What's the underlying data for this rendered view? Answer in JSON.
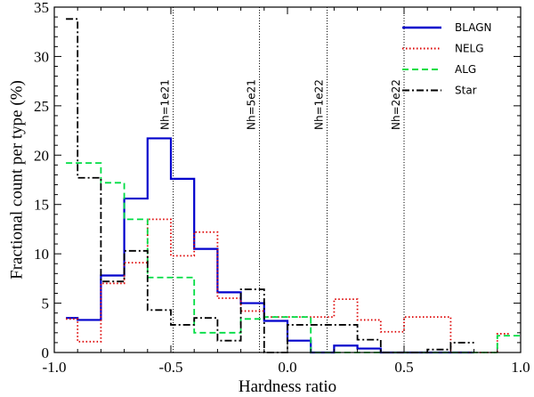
{
  "chart_data": {
    "type": "histogram-step",
    "title": "",
    "xlabel": "Hardness ratio",
    "ylabel": "Fractional count per type (%)",
    "xlim": [
      -1.0,
      1.0
    ],
    "ylim": [
      0,
      35
    ],
    "x_ticks": [
      -1.0,
      -0.5,
      0.0,
      0.5,
      1.0
    ],
    "x_tick_labels": [
      "-1.0",
      "-0.5",
      "0.0",
      "0.5",
      "1.0"
    ],
    "y_ticks": [
      0,
      5,
      10,
      15,
      20,
      25,
      30,
      35
    ],
    "y_tick_labels": [
      "0",
      "5",
      "10",
      "15",
      "20",
      "25",
      "30",
      "35"
    ],
    "legend_position": "top-right",
    "series": [
      {
        "name": "BLAGN",
        "color": "#0000cc",
        "dash": "solid",
        "edges": [
          -0.95,
          -0.9,
          -0.8,
          -0.7,
          -0.6,
          -0.5,
          -0.4,
          -0.3,
          -0.2,
          -0.1,
          0.0,
          0.1,
          0.2,
          0.3,
          0.4,
          0.5,
          0.6,
          0.7,
          0.8
        ],
        "values": [
          3.5,
          3.3,
          7.8,
          15.6,
          21.7,
          17.6,
          10.5,
          6.1,
          5.0,
          3.2,
          1.2,
          0.0,
          0.7,
          0.4,
          0.0,
          0.0,
          0.0,
          0.0
        ]
      },
      {
        "name": "NELG",
        "color": "#dd0000",
        "dash": "dotted",
        "edges": [
          -0.95,
          -0.9,
          -0.8,
          -0.7,
          -0.6,
          -0.5,
          -0.4,
          -0.3,
          -0.2,
          -0.1,
          0.0,
          0.1,
          0.2,
          0.3,
          0.4,
          0.5,
          0.6,
          0.7,
          0.8,
          0.9,
          0.95
        ],
        "values": [
          3.4,
          1.1,
          7.0,
          9.1,
          13.5,
          9.8,
          12.2,
          5.5,
          4.2,
          3.6,
          3.6,
          3.6,
          5.4,
          3.3,
          2.1,
          3.6,
          3.6,
          0.0,
          0.0,
          1.9
        ]
      },
      {
        "name": "ALG",
        "color": "#00dd44",
        "dash": "dashed",
        "edges": [
          -0.95,
          -0.8,
          -0.7,
          -0.6,
          -0.5,
          -0.4,
          -0.3,
          -0.2,
          -0.1,
          0.0,
          0.1,
          0.2,
          0.3,
          0.4,
          0.5,
          0.6,
          0.7,
          0.8,
          0.9,
          1.0
        ],
        "values": [
          19.2,
          17.2,
          13.5,
          7.6,
          7.6,
          2.0,
          2.0,
          3.4,
          3.6,
          3.6,
          0.0,
          0.0,
          0.0,
          0.0,
          0.0,
          0.0,
          0.0,
          0.0,
          1.7
        ]
      },
      {
        "name": "Star",
        "color": "#000000",
        "dash": "dashdot",
        "edges": [
          -0.95,
          -0.9,
          -0.8,
          -0.7,
          -0.6,
          -0.5,
          -0.4,
          -0.3,
          -0.2,
          -0.1,
          0.0,
          0.1,
          0.2,
          0.3,
          0.4,
          0.5,
          0.6,
          0.7,
          0.8
        ],
        "values": [
          33.8,
          17.7,
          7.2,
          10.3,
          4.3,
          2.8,
          3.5,
          1.2,
          6.4,
          0.0,
          2.8,
          2.8,
          2.8,
          1.3,
          0.0,
          0.0,
          0.3,
          1.0
        ]
      }
    ],
    "vertical_lines": [
      {
        "x": -0.49,
        "label": "Nh=1e21"
      },
      {
        "x": -0.12,
        "label": "Nh=5e21"
      },
      {
        "x": 0.17,
        "label": "Nh=1e22"
      },
      {
        "x": 0.5,
        "label": "Nh=2e22"
      }
    ]
  }
}
